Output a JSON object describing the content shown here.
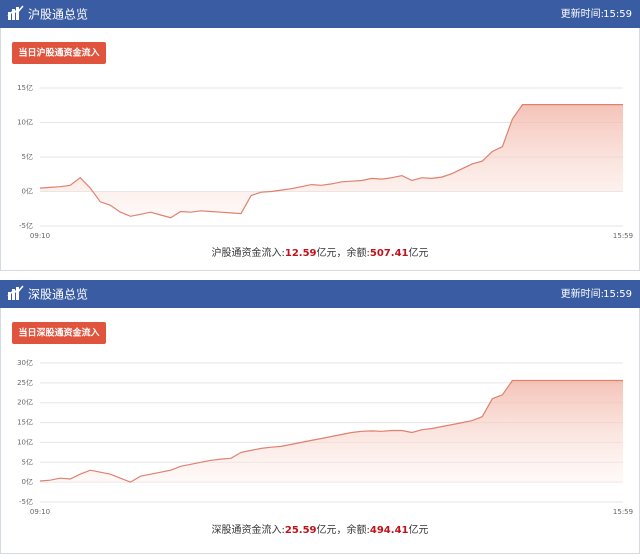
{
  "panels": [
    {
      "title": "沪股通总览",
      "update_label": "更新时间:",
      "update_time": "15:59",
      "button": "当日沪股通资金流入",
      "summary": {
        "label": "沪股通资金流入:",
        "inflow": 12.59,
        "inflow_unit": "亿元",
        "balance_label": "，余额:",
        "balance": 507.41,
        "balance_unit": "亿元"
      }
    },
    {
      "title": "深股通总览",
      "update_label": "更新时间:",
      "update_time": "15:59",
      "button": "当日深股通资金流入",
      "summary": {
        "label": "深股通资金流入:",
        "inflow": 25.59,
        "inflow_unit": "亿元",
        "balance_label": "，余额:",
        "balance": 494.41,
        "balance_unit": "亿元"
      }
    }
  ],
  "chart_data": [
    {
      "type": "line",
      "area": true,
      "color": "#e0806f",
      "grid": true,
      "categories": [
        "09:10",
        null,
        null,
        null,
        null,
        null,
        null,
        null,
        null,
        null,
        null,
        null,
        null,
        null,
        null,
        null,
        null,
        null,
        null,
        null,
        null,
        null,
        null,
        null,
        null,
        null,
        null,
        null,
        null,
        null,
        null,
        null,
        null,
        null,
        null,
        null,
        null,
        null,
        null,
        null,
        null,
        null,
        null,
        null,
        null,
        null,
        null,
        null,
        null,
        null,
        null,
        null,
        null,
        null,
        null,
        null,
        null,
        null,
        "15:59"
      ],
      "values": [
        0.5,
        0.6,
        0.7,
        0.9,
        2.0,
        0.5,
        -1.5,
        -2.0,
        -3.0,
        -3.6,
        -3.3,
        -3.0,
        -3.4,
        -3.8,
        -2.9,
        -3.0,
        -2.8,
        -2.9,
        -3.0,
        -3.1,
        -3.2,
        -0.6,
        -0.1,
        0.0,
        0.2,
        0.4,
        0.7,
        1.0,
        0.9,
        1.1,
        1.4,
        1.5,
        1.6,
        1.9,
        1.8,
        2.0,
        2.3,
        1.6,
        2.0,
        1.9,
        2.1,
        2.6,
        3.3,
        4.0,
        4.4,
        5.8,
        6.5,
        10.5,
        12.59,
        12.59,
        12.59,
        12.59,
        12.59,
        12.59,
        12.59,
        12.59,
        12.59,
        12.59,
        12.59
      ],
      "ylim": [
        -5,
        15
      ],
      "yticks": [
        {
          "value": 15,
          "label": "15亿"
        },
        {
          "value": 10,
          "label": "10亿"
        },
        {
          "value": 5,
          "label": "5亿"
        },
        {
          "value": 0,
          "label": "0亿"
        },
        {
          "value": -5,
          "label": "-5亿"
        }
      ]
    },
    {
      "type": "line",
      "area": true,
      "color": "#e0806f",
      "grid": true,
      "categories": [
        "09:10",
        null,
        null,
        null,
        null,
        null,
        null,
        null,
        null,
        null,
        null,
        null,
        null,
        null,
        null,
        null,
        null,
        null,
        null,
        null,
        null,
        null,
        null,
        null,
        null,
        null,
        null,
        null,
        null,
        null,
        null,
        null,
        null,
        null,
        null,
        null,
        null,
        null,
        null,
        null,
        null,
        null,
        null,
        null,
        null,
        null,
        null,
        null,
        null,
        null,
        null,
        null,
        null,
        null,
        null,
        null,
        null,
        null,
        "15:59"
      ],
      "values": [
        0.3,
        0.5,
        1.0,
        0.8,
        2.0,
        3.0,
        2.5,
        2.0,
        1.0,
        0.0,
        1.5,
        2.0,
        2.5,
        3.0,
        4.0,
        4.5,
        5.0,
        5.5,
        5.8,
        6.0,
        7.5,
        8.0,
        8.5,
        8.8,
        9.0,
        9.5,
        10.0,
        10.5,
        11.0,
        11.5,
        12.0,
        12.5,
        12.8,
        12.9,
        12.8,
        13.0,
        13.0,
        12.5,
        13.2,
        13.5,
        14.0,
        14.5,
        15.0,
        15.5,
        16.5,
        21.0,
        22.0,
        25.59,
        25.59,
        25.59,
        25.59,
        25.59,
        25.59,
        25.59,
        25.59,
        25.59,
        25.59,
        25.59,
        25.59
      ],
      "ylim": [
        -5,
        30
      ],
      "yticks": [
        {
          "value": 30,
          "label": "30亿"
        },
        {
          "value": 25,
          "label": "25亿"
        },
        {
          "value": 20,
          "label": "20亿"
        },
        {
          "value": 15,
          "label": "15亿"
        },
        {
          "value": 10,
          "label": "10亿"
        },
        {
          "value": 5,
          "label": "5亿"
        },
        {
          "value": 0,
          "label": "0亿"
        },
        {
          "value": -5,
          "label": "-5亿"
        }
      ]
    }
  ]
}
